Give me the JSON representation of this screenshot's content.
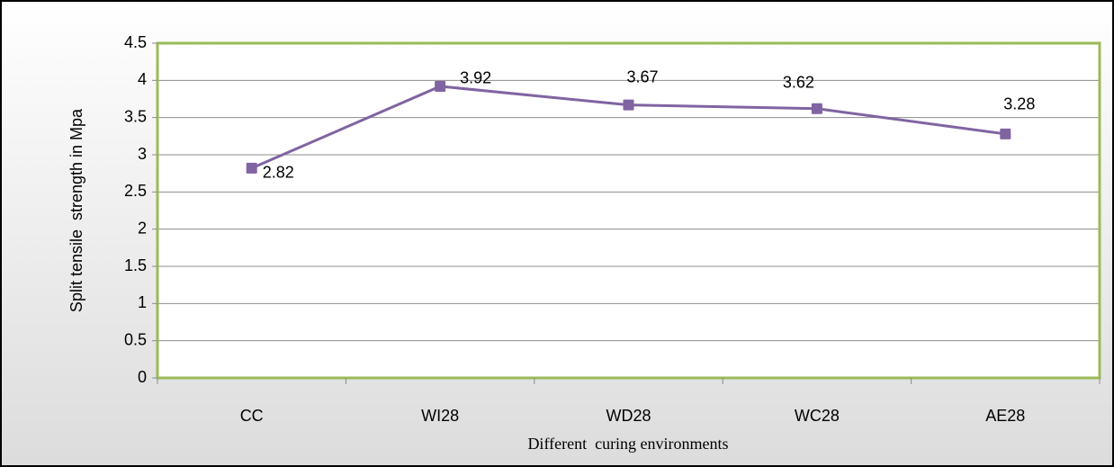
{
  "chart_data": {
    "type": "line",
    "x_label": "Different  curing environments",
    "y_label": "Split tensile  strength in Mpa",
    "categories": [
      "CC",
      "WI28",
      "WD28",
      "WC28",
      "AE28"
    ],
    "series": [
      {
        "name": "Split tensile strength",
        "color": "#8064a2",
        "values": [
          2.82,
          3.92,
          3.67,
          3.62,
          3.28
        ]
      }
    ],
    "ylim": [
      0,
      4.5
    ],
    "yticks": [
      0,
      0.5,
      1,
      1.5,
      2,
      2.5,
      3,
      3.5,
      4,
      4.5
    ],
    "grid": true,
    "legend": false,
    "data_labels": true
  }
}
